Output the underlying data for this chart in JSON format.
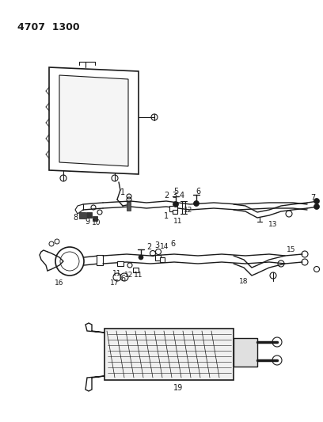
{
  "title": "4707  1300",
  "bg_color": "#ffffff",
  "lc": "#1a1a1a",
  "fig_width": 4.08,
  "fig_height": 5.33,
  "dpi": 100
}
